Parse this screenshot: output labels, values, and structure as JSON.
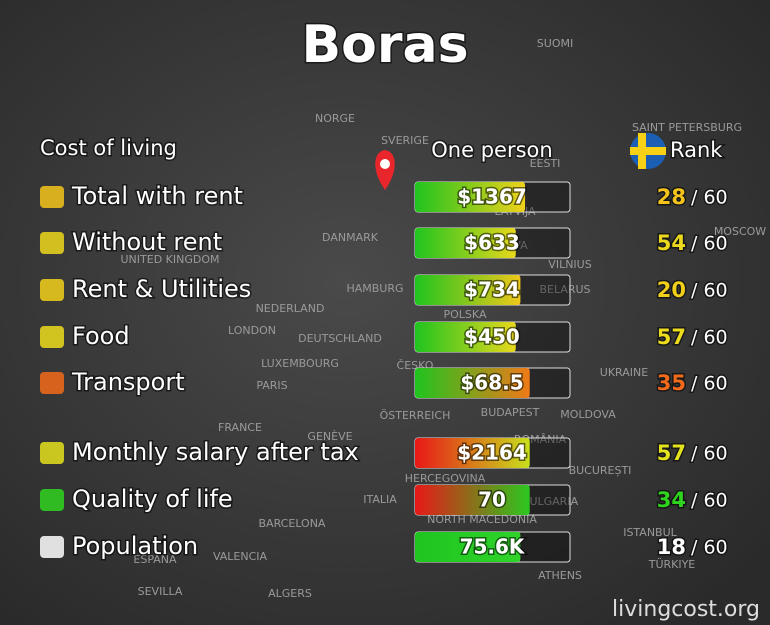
{
  "header": {
    "title": "Boras",
    "section": "Cost of living",
    "column_value": "One person",
    "column_rank": "Rank"
  },
  "rows": [
    {
      "label": "Total with rent",
      "value": "$1367",
      "rank": 28,
      "of": "/ 60",
      "fill": 71,
      "bar_colors": [
        "#1fc41f",
        "#f0d21a"
      ],
      "rank_color": "#f5c41a"
    },
    {
      "label": "Without rent",
      "value": "$633",
      "rank": 54,
      "of": "/ 60",
      "fill": 65,
      "bar_colors": [
        "#1fc41f",
        "#e8d81c"
      ],
      "rank_color": "#ecd81c"
    },
    {
      "label": "Rent & Utilities",
      "value": "$734",
      "rank": 20,
      "of": "/ 60",
      "fill": 68,
      "bar_colors": [
        "#1fc41f",
        "#f0c81a"
      ],
      "rank_color": "#f2d01a"
    },
    {
      "label": "Food",
      "value": "$450",
      "rank": 57,
      "of": "/ 60",
      "fill": 65,
      "bar_colors": [
        "#1fc41f",
        "#e8d81c"
      ],
      "rank_color": "#ecdc1c"
    },
    {
      "label": "Transport",
      "value": "$68.5",
      "rank": 35,
      "of": "/ 60",
      "fill": 74,
      "bar_colors": [
        "#1fc41f",
        "#f07a18"
      ],
      "rank_color": "#f26a1a"
    },
    {
      "label": "Monthly salary after tax",
      "value": "$2164",
      "rank": 57,
      "of": "/ 60",
      "fill": 74,
      "bar_colors": [
        "#e81818",
        "#c8e01c"
      ],
      "rank_color": "#e4e21c"
    },
    {
      "label": "Quality of life",
      "value": "70",
      "rank": 34,
      "of": "/ 60",
      "fill": 74,
      "bar_colors": [
        "#e81818",
        "#2cc81e"
      ],
      "rank_color": "#2fd41f"
    },
    {
      "label": "Population",
      "value": "75.6K",
      "rank": 18,
      "of": "/ 60",
      "fill": 68,
      "bar_colors": [
        "#1fc41f",
        "#2fd42a"
      ],
      "rank_color": "#ffffff"
    }
  ],
  "map_labels": [
    "SUOMI",
    "NORGE",
    "SVERIGE",
    "EESTI",
    "SAINT PETERSBURG",
    "LATVIJA",
    "DANMARK",
    "LIETUVA",
    "UNITED KINGDOM",
    "VILNIUS",
    "MOSCOW",
    "HAMBURG",
    "BELARUS",
    "NEDERLAND",
    "POLSKA",
    "LONDON",
    "DEUTSCHLAND",
    "LUXEMBOURG",
    "ČESKO",
    "UKRAINE",
    "PARIS",
    "BUDAPEST",
    "ÖSTERREICH",
    "MOLDOVA",
    "FRANCE",
    "GENÈVE",
    "ROMÂNIA",
    "HERCEGOVINA",
    "BUCUREȘTI",
    "ITALIA",
    "BULGARIA",
    "BARCELONA",
    "NORTH MACEDONIA",
    "ISTANBUL",
    "VALENCIA",
    "ESPAÑA",
    "TÜRKIYE",
    "SEVILLA",
    "ATHENS",
    "ALGERS"
  ],
  "footer": "livingcost.org"
}
